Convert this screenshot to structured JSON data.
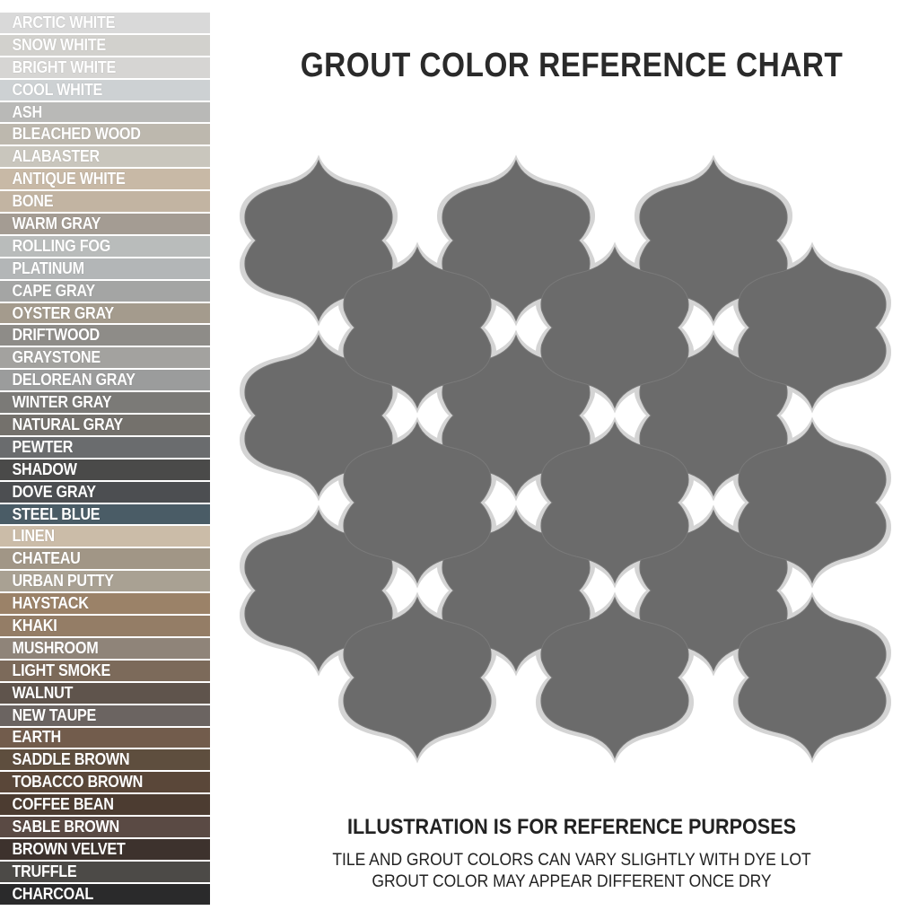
{
  "title": "GROUT COLOR REFERENCE CHART",
  "swatches": [
    {
      "label": "ARCTIC WHITE",
      "color": "#d9d9d9"
    },
    {
      "label": "SNOW WHITE",
      "color": "#d2d1cd"
    },
    {
      "label": "BRIGHT WHITE",
      "color": "#d6d5d3"
    },
    {
      "label": "COOL WHITE",
      "color": "#cdd1d3"
    },
    {
      "label": "ASH",
      "color": "#b9b9b7"
    },
    {
      "label": "BLEACHED WOOD",
      "color": "#bdb8ae"
    },
    {
      "label": "ALABASTER",
      "color": "#c9c6bd"
    },
    {
      "label": "ANTIQUE WHITE",
      "color": "#c8b9a6"
    },
    {
      "label": "BONE",
      "color": "#c2b4a2"
    },
    {
      "label": "WARM GRAY",
      "color": "#a49c93"
    },
    {
      "label": "ROLLING FOG",
      "color": "#b9bcbb"
    },
    {
      "label": "PLATINUM",
      "color": "#b3b6b7"
    },
    {
      "label": "CAPE GRAY",
      "color": "#a4a5a4"
    },
    {
      "label": "OYSTER GRAY",
      "color": "#a49b8d"
    },
    {
      "label": "DRIFTWOOD",
      "color": "#8e8c88"
    },
    {
      "label": "GRAYSTONE",
      "color": "#a3a29f"
    },
    {
      "label": "DELOREAN GRAY",
      "color": "#9b9c9c"
    },
    {
      "label": "WINTER GRAY",
      "color": "#7b7a77"
    },
    {
      "label": "NATURAL GRAY",
      "color": "#74716c"
    },
    {
      "label": "PEWTER",
      "color": "#6a6c6e"
    },
    {
      "label": "SHADOW",
      "color": "#4a4a49"
    },
    {
      "label": "DOVE GRAY",
      "color": "#4c4e51"
    },
    {
      "label": "STEEL BLUE",
      "color": "#4a5c66"
    },
    {
      "label": "LINEN",
      "color": "#cbbca8"
    },
    {
      "label": "CHATEAU",
      "color": "#a19686"
    },
    {
      "label": "URBAN PUTTY",
      "color": "#a9a193"
    },
    {
      "label": "HAYSTACK",
      "color": "#9b8268"
    },
    {
      "label": "KHAKI",
      "color": "#947d66"
    },
    {
      "label": "MUSHROOM",
      "color": "#8f8479"
    },
    {
      "label": "LIGHT SMOKE",
      "color": "#7c6a5a"
    },
    {
      "label": "WALNUT",
      "color": "#5f544c"
    },
    {
      "label": "NEW TAUPE",
      "color": "#6b6461"
    },
    {
      "label": "EARTH",
      "color": "#725c4c"
    },
    {
      "label": "SADDLE BROWN",
      "color": "#5e4e3e"
    },
    {
      "label": "TOBACCO BROWN",
      "color": "#5a4739"
    },
    {
      "label": "COFFEE BEAN",
      "color": "#4c3c31"
    },
    {
      "label": "SABLE BROWN",
      "color": "#5a4a44"
    },
    {
      "label": "BROWN VELVET",
      "color": "#3d322d"
    },
    {
      "label": "TRUFFLE",
      "color": "#4c4a47"
    },
    {
      "label": "CHARCOAL",
      "color": "#2a2a2b"
    }
  ],
  "mosaic": {
    "tile_color": "#6b6b6b",
    "grout_color": "#d4d4d4"
  },
  "note": {
    "heading": "ILLUSTRATION IS FOR REFERENCE PURPOSES",
    "lines": [
      "TILE AND GROUT COLORS CAN VARY SLIGHTLY WITH DYE LOT",
      "GROUT COLOR MAY APPEAR DIFFERENT ONCE DRY"
    ]
  }
}
